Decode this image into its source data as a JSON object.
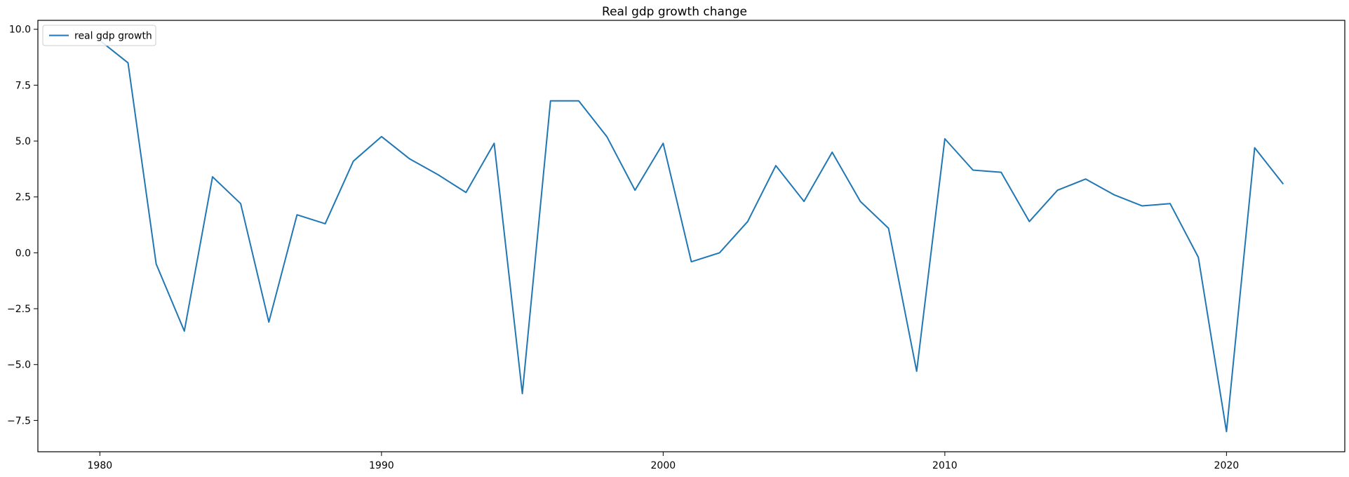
{
  "chart_data": {
    "type": "line",
    "title": "Real gdp growth change",
    "xlabel": "",
    "ylabel": "",
    "xlim": [
      1977.8,
      2024.2
    ],
    "ylim": [
      -8.9,
      10.4
    ],
    "xticks": [
      1980,
      1990,
      2000,
      2010,
      2020
    ],
    "yticks": [
      -7.5,
      -5.0,
      -2.5,
      0.0,
      2.5,
      5.0,
      7.5,
      10.0
    ],
    "ytick_labels": [
      "−7.5",
      "−5.0",
      "−2.5",
      "0.0",
      "2.5",
      "5.0",
      "7.5",
      "10.0"
    ],
    "grid": false,
    "legend_position": "upper left",
    "series": [
      {
        "name": "real gdp growth",
        "color": "#1f77b4",
        "x": [
          1980,
          1981,
          1982,
          1983,
          1984,
          1985,
          1986,
          1987,
          1988,
          1989,
          1990,
          1991,
          1992,
          1993,
          1994,
          1995,
          1996,
          1997,
          1998,
          1999,
          2000,
          2001,
          2002,
          2003,
          2004,
          2005,
          2006,
          2007,
          2008,
          2009,
          2010,
          2011,
          2012,
          2013,
          2014,
          2015,
          2016,
          2017,
          2018,
          2019,
          2020,
          2021,
          2022
        ],
        "y": [
          9.5,
          8.5,
          -0.5,
          -3.5,
          3.4,
          2.2,
          -3.1,
          1.7,
          1.3,
          4.1,
          5.2,
          4.2,
          3.5,
          2.7,
          4.9,
          -6.3,
          6.8,
          6.8,
          5.2,
          2.8,
          4.9,
          -0.4,
          0.0,
          1.4,
          3.9,
          2.3,
          4.5,
          2.3,
          1.1,
          -5.3,
          5.1,
          3.7,
          3.6,
          1.4,
          2.8,
          3.3,
          2.6,
          2.1,
          2.2,
          -0.2,
          -8.0,
          4.7,
          3.1
        ]
      }
    ]
  }
}
